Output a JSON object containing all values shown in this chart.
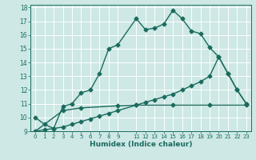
{
  "xlabel": "Humidex (Indice chaleur)",
  "xlim": [
    -0.5,
    23.5
  ],
  "ylim": [
    9,
    18.2
  ],
  "yticks": [
    9,
    10,
    11,
    12,
    13,
    14,
    15,
    16,
    17,
    18
  ],
  "xtick_pos": [
    0,
    1,
    2,
    3,
    4,
    5,
    6,
    7,
    8,
    9,
    11,
    12,
    13,
    14,
    15,
    16,
    17,
    18,
    19,
    20,
    21,
    22,
    23
  ],
  "xtick_labels": [
    "0",
    "1",
    "2",
    "3",
    "4",
    "5",
    "6",
    "7",
    "8",
    "9",
    "11",
    "12",
    "13",
    "14",
    "15",
    "16",
    "17",
    "18",
    "19",
    "20",
    "21",
    "22",
    "23"
  ],
  "bg_color": "#cde8e5",
  "line_color": "#1a6b5e",
  "grid_color": "#ffffff",
  "curve1_x": [
    0,
    1,
    2,
    3,
    4,
    5,
    6,
    7,
    8,
    9,
    11,
    12,
    13,
    14,
    15,
    16,
    17,
    18,
    19,
    20,
    21,
    22,
    23
  ],
  "curve1_y": [
    10.0,
    9.5,
    9.2,
    10.8,
    11.0,
    11.8,
    12.0,
    13.2,
    15.0,
    15.3,
    17.2,
    16.4,
    16.5,
    16.8,
    17.8,
    17.2,
    16.3,
    16.1,
    15.1,
    14.4,
    13.2,
    12.0,
    11.0
  ],
  "curve2_x": [
    0,
    1,
    2,
    3,
    4,
    5,
    6,
    7,
    8,
    9,
    11,
    12,
    13,
    14,
    15,
    16,
    17,
    18,
    19,
    20,
    21,
    22,
    23
  ],
  "curve2_y": [
    9.0,
    9.1,
    9.2,
    9.3,
    9.5,
    9.7,
    9.9,
    10.1,
    10.3,
    10.5,
    10.9,
    11.1,
    11.3,
    11.5,
    11.7,
    12.0,
    12.3,
    12.6,
    13.0,
    14.4,
    13.2,
    12.0,
    11.0
  ],
  "curve3_x": [
    0,
    3,
    5,
    9,
    11,
    15,
    19,
    23
  ],
  "curve3_y": [
    9.0,
    10.5,
    10.7,
    10.85,
    10.9,
    10.9,
    10.9,
    10.9
  ],
  "marker_size": 2.5,
  "line_width": 1.0
}
